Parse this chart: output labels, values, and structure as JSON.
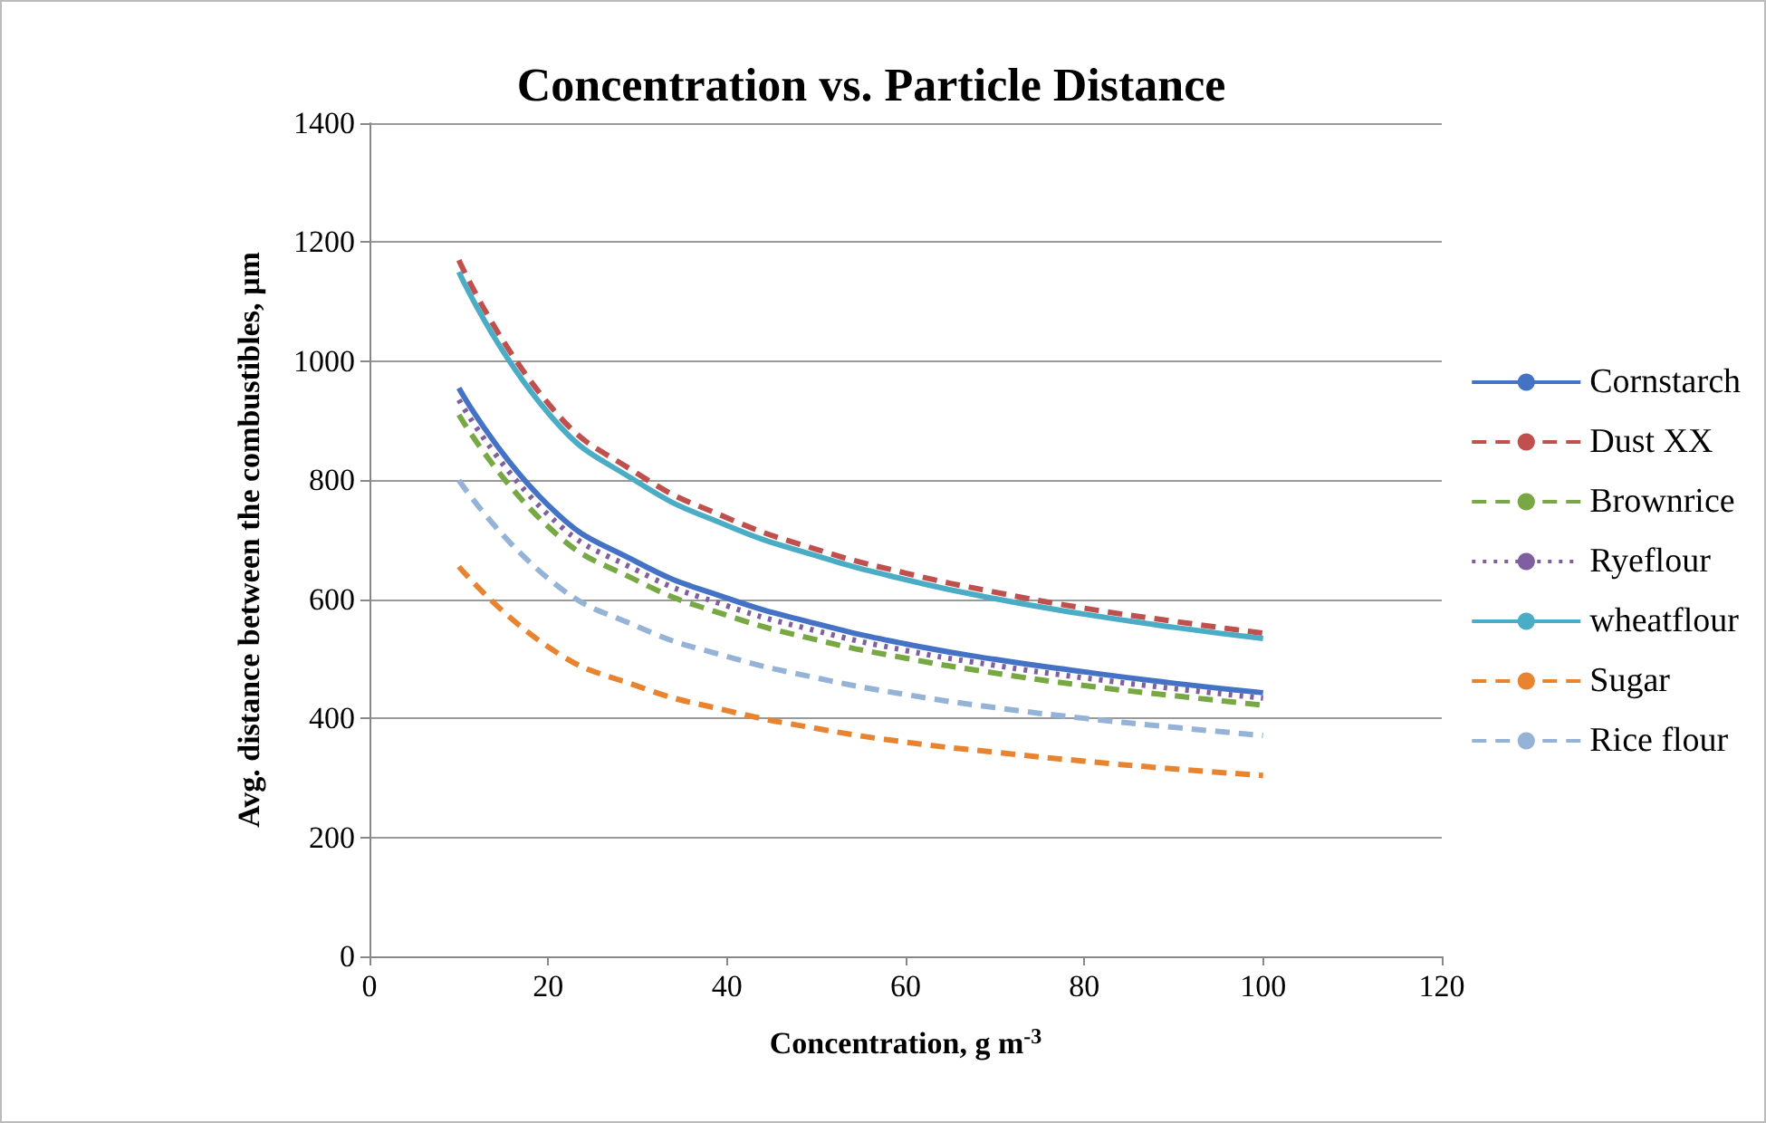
{
  "chart_data": {
    "type": "line",
    "title": "Concentration vs. Particle Distance",
    "xlabel": "Concentration, g m$^{-3}$",
    "ylabel": "Avg. distance between the combustibles, µm",
    "x": [
      10,
      20,
      30,
      40,
      50,
      60,
      70,
      80,
      90,
      100
    ],
    "series": [
      {
        "name": "Cornstarch",
        "color": "#4472c4",
        "line_style": "solid",
        "values": [
          955,
          758,
          662,
          602,
          559,
          525,
          499,
          478,
          459,
          443
        ]
      },
      {
        "name": "Dust XX",
        "color": "#c0504d",
        "line_style": "dashed",
        "values": [
          1170,
          929,
          811,
          737,
          684,
          644,
          612,
          585,
          563,
          543
        ]
      },
      {
        "name": "Brownrice",
        "color": "#77a843",
        "line_style": "dashed",
        "values": [
          910,
          722,
          631,
          573,
          532,
          501,
          476,
          455,
          438,
          422
        ]
      },
      {
        "name": "Ryeflour",
        "color": "#7f5fa0",
        "line_style": "dotted",
        "values": [
          935,
          742,
          648,
          589,
          547,
          514,
          489,
          468,
          450,
          434
        ]
      },
      {
        "name": "wheatflour",
        "color": "#4bacc6",
        "line_style": "solid",
        "values": [
          1150,
          913,
          797,
          724,
          673,
          633,
          601,
          575,
          553,
          534
        ]
      },
      {
        "name": "Sugar",
        "color": "#e8832f",
        "line_style": "dashed",
        "values": [
          655,
          520,
          454,
          413,
          383,
          360,
          343,
          328,
          315,
          304
        ]
      },
      {
        "name": "Rice flour",
        "color": "#95b3d7",
        "line_style": "dashed",
        "values": [
          800,
          635,
          554,
          504,
          468,
          440,
          418,
          400,
          385,
          371
        ]
      }
    ],
    "xlim": [
      0,
      120
    ],
    "xticks": [
      0,
      20,
      40,
      60,
      80,
      100,
      120
    ],
    "ylim": [
      0,
      1400
    ],
    "yticks": [
      0,
      200,
      400,
      600,
      800,
      1000,
      1200,
      1400
    ],
    "grid": "y",
    "legend": "right",
    "marker": "none"
  }
}
